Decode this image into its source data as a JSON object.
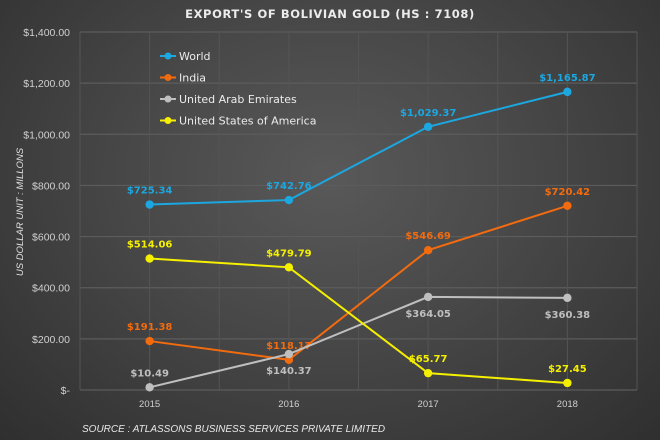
{
  "chart_data": {
    "type": "line",
    "title": "EXPORT'S OF BOLIVIAN GOLD (HS : 7108)",
    "xlabel": "",
    "ylabel": "US DOLLAR UNIT : MILLONS",
    "categories": [
      "2015",
      "2016",
      "2017",
      "2018"
    ],
    "ylim": [
      0,
      1400
    ],
    "yticks": [
      0,
      200,
      400,
      600,
      800,
      1000,
      1200,
      1400
    ],
    "ytick_labels": [
      "$-",
      "$200.00",
      "$400.00",
      "$600.00",
      "$800.00",
      "$1,000.00",
      "$1,200.00",
      "$1,400.00"
    ],
    "grid": true,
    "legend_position": "top-left",
    "series": [
      {
        "name": "World",
        "color": "#1ca7e0",
        "values": [
          725.34,
          742.76,
          1029.37,
          1165.87
        ],
        "labels": [
          "$725.34",
          "$742.76",
          "$1,029.37",
          "$1,165.87"
        ],
        "label_pos": [
          "above",
          "above",
          "above",
          "above"
        ]
      },
      {
        "name": "India",
        "color": "#f26b0f",
        "values": [
          191.38,
          118.17,
          546.69,
          720.42
        ],
        "labels": [
          "$191.38",
          "$118.17",
          "$546.69",
          "$720.42"
        ],
        "label_pos": [
          "above",
          "above",
          "above",
          "above"
        ]
      },
      {
        "name": "United Arab Emirates",
        "color": "#bfbfbf",
        "values": [
          10.49,
          140.37,
          364.05,
          360.38
        ],
        "labels": [
          "$10.49",
          "$140.37",
          "$364.05",
          "$360.38"
        ],
        "label_pos": [
          "above",
          "below",
          "below",
          "below"
        ]
      },
      {
        "name": "United States of America",
        "color": "#f5f000",
        "values": [
          514.06,
          479.79,
          65.77,
          27.45
        ],
        "labels": [
          "$514.06",
          "$479.79",
          "$65.77",
          "$27.45"
        ],
        "label_pos": [
          "above",
          "above",
          "above",
          "above"
        ]
      }
    ],
    "source": "SOURCE : ATLASSONS BUSINESS SERVICES PRIVATE LIMITED"
  }
}
